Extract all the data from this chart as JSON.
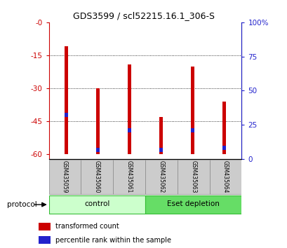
{
  "title": "GDS3599 / scl52215.16.1_306-S",
  "samples": [
    "GSM435059",
    "GSM435060",
    "GSM435061",
    "GSM435062",
    "GSM435063",
    "GSM435064"
  ],
  "red_bar_tops": [
    -11,
    -30,
    -19,
    -43,
    -20,
    -36
  ],
  "red_bar_bottoms": [
    -60,
    -60,
    -60,
    -60,
    -60,
    -60
  ],
  "blue_marker_positions": [
    -43,
    -59,
    -50,
    -59,
    -50,
    -58
  ],
  "blue_bar_height": 2.0,
  "ylim_left": [
    -62,
    0
  ],
  "ylim_right": [
    0,
    100
  ],
  "yticks_left": [
    0,
    -15,
    -30,
    -45,
    -60
  ],
  "yticks_right": [
    0,
    25,
    50,
    75,
    100
  ],
  "groups": [
    {
      "label": "control",
      "samples": [
        0,
        1,
        2
      ],
      "color": "#ccffcc"
    },
    {
      "label": "Eset depletion",
      "samples": [
        3,
        4,
        5
      ],
      "color": "#66dd66"
    }
  ],
  "protocol_label": "protocol",
  "red_color": "#cc0000",
  "blue_color": "#2222cc",
  "left_axis_color": "#cc0000",
  "right_axis_color": "#2222cc",
  "grid_color": "#000000",
  "sample_box_color": "#cccccc",
  "legend_red": "transformed count",
  "legend_blue": "percentile rank within the sample",
  "bar_width": 0.12
}
